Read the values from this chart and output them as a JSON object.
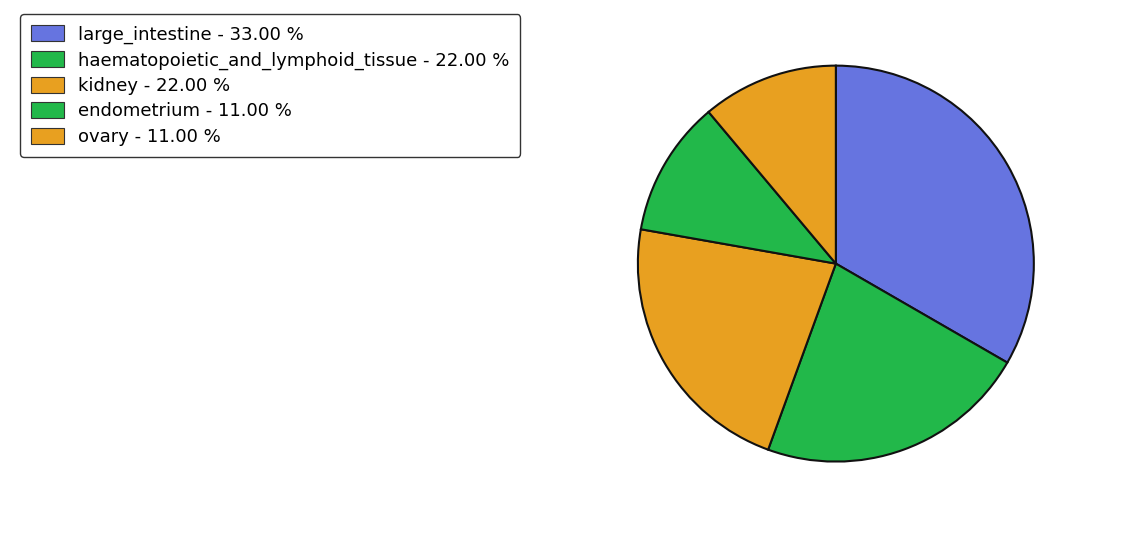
{
  "labels": [
    "large_intestine - 33.00 %",
    "haematopoietic_and_lymphoid_tissue - 22.00 %",
    "kidney - 22.00 %",
    "endometrium - 11.00 %",
    "ovary - 11.00 %"
  ],
  "sizes": [
    33,
    22,
    22,
    11,
    11
  ],
  "colors": [
    "#6674e0",
    "#22b84a",
    "#e8a020",
    "#22b84a",
    "#e8a020"
  ],
  "startangle": 90,
  "figsize": [
    11.45,
    5.38
  ],
  "dpi": 100,
  "legend_fontsize": 13,
  "background_color": "#ffffff",
  "edgecolor": "#111111",
  "linewidth": 1.5
}
